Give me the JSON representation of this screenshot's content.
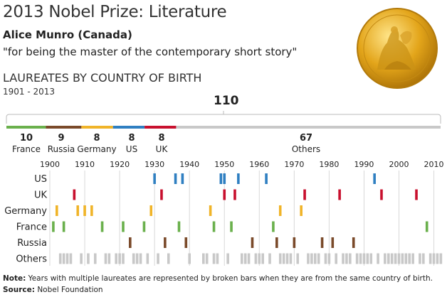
{
  "title": "2013 Nobel Prize: Literature",
  "laureate": "Alice Munro (Canada)",
  "citation": "\"for being the master of the contemporary short story\"",
  "section_heading": "LAUREATES BY COUNTRY OF BIRTH",
  "year_range": "1901 - 2013",
  "total": "110",
  "note_label": "Note:",
  "note_text": " Years with multiple laureates are represented by broken bars when they are from the same country of birth.",
  "source_label": "Source:",
  "source_text": " Nobel Foundation",
  "medal_icon": "nobel-medal-icon",
  "chart_data": {
    "type": "bar",
    "stacked_bar": {
      "total": 110,
      "segments": [
        {
          "name": "France",
          "value": 10,
          "color": "#6ab04c"
        },
        {
          "name": "Russia",
          "value": 9,
          "color": "#7a4a2a"
        },
        {
          "name": "Germany",
          "value": 8,
          "color": "#f0b429"
        },
        {
          "name": "US",
          "value": 8,
          "color": "#2f7fc1"
        },
        {
          "name": "UK",
          "value": 8,
          "color": "#c8102e"
        },
        {
          "name": "Others",
          "value": 67,
          "color": "#c8c8c8"
        }
      ]
    },
    "timeline": {
      "xlim": [
        1900,
        2013
      ],
      "ticks": [
        1900,
        1910,
        1920,
        1930,
        1940,
        1950,
        1960,
        1970,
        1980,
        1990,
        2000,
        2010
      ],
      "rows": [
        {
          "name": "US",
          "color": "#2f7fc1",
          "years": [
            1930,
            1936,
            1938,
            1949,
            1950,
            1954,
            1962,
            1993
          ]
        },
        {
          "name": "UK",
          "color": "#c8102e",
          "years": [
            1907,
            1932,
            1950,
            1953,
            1973,
            1983,
            1995,
            2005
          ]
        },
        {
          "name": "Germany",
          "color": "#f0b429",
          "years": [
            1902,
            1908,
            1910,
            1912,
            1929,
            1946,
            1966,
            1972
          ]
        },
        {
          "name": "France",
          "color": "#6ab04c",
          "years": [
            1901,
            1904,
            1915,
            1921,
            1927,
            1937,
            1947,
            1952,
            1964,
            2008
          ]
        },
        {
          "name": "Russia",
          "color": "#7a4a2a",
          "years": [
            1923,
            1933,
            1939,
            1958,
            1965,
            1970,
            1978,
            1981,
            1987
          ]
        },
        {
          "name": "Others",
          "color": "#c8c8c8",
          "years": [
            1903,
            1904,
            1905,
            1906,
            1909,
            1911,
            1913,
            1916,
            1917,
            1919,
            1920,
            1921,
            1924,
            1925,
            1926,
            1928,
            1931,
            1934,
            1940,
            1944,
            1945,
            1947,
            1948,
            1951,
            1955,
            1956,
            1957,
            1959,
            1960,
            1961,
            1963,
            1966,
            1967,
            1968,
            1969,
            1971,
            1974,
            1975,
            1976,
            1977,
            1979,
            1980,
            1982,
            1984,
            1985,
            1986,
            1988,
            1989,
            1990,
            1991,
            1992,
            1994,
            1996,
            1997,
            1998,
            1999,
            2000,
            2001,
            2002,
            2003,
            2004,
            2006,
            2007,
            2009,
            2010,
            2011,
            2012
          ]
        }
      ]
    }
  }
}
